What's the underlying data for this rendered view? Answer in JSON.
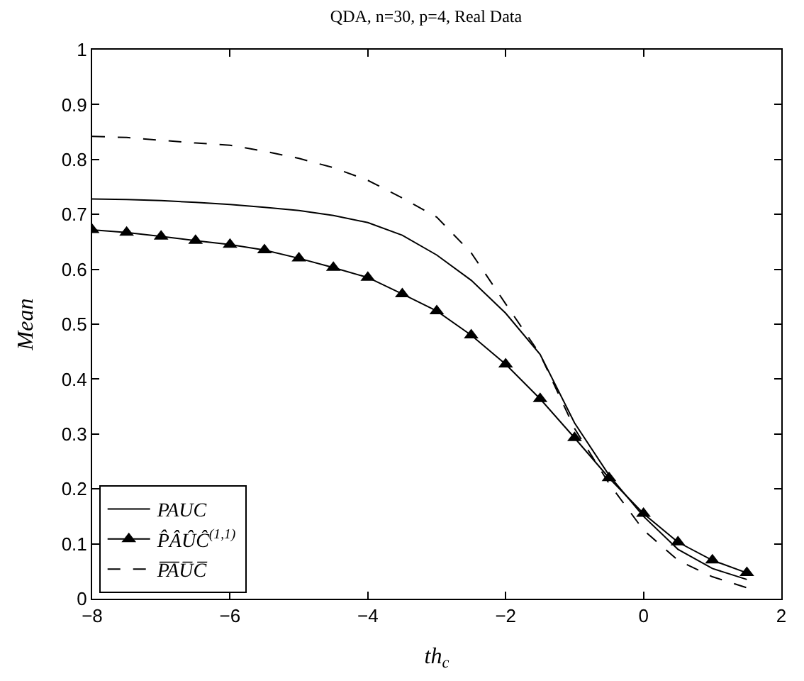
{
  "chart_data": {
    "type": "line",
    "title": "QDA, n=30, p=4, Real Data",
    "xlabel": "th$_{c}$",
    "ylabel": "Mean",
    "x": [
      -8,
      -7.5,
      -7,
      -6.5,
      -6,
      -5.5,
      -5,
      -4.5,
      -4,
      -3.5,
      -3,
      -2.5,
      -2,
      -1.5,
      -1,
      -0.5,
      0,
      0.5,
      1,
      1.5
    ],
    "series": [
      {
        "name": "PAUC",
        "color": "#000000",
        "line_style": "solid",
        "marker": "none",
        "values": [
          0.728,
          0.727,
          0.725,
          0.722,
          0.718,
          0.713,
          0.707,
          0.698,
          0.685,
          0.662,
          0.626,
          0.58,
          0.52,
          0.445,
          0.32,
          0.225,
          0.15,
          0.09,
          0.055,
          0.035
        ]
      },
      {
        "name": "P̂ÂÛĈ$^{(1,1)}$",
        "color": "#000000",
        "line_style": "solid",
        "marker": "triangle",
        "values": [
          0.672,
          0.667,
          0.66,
          0.652,
          0.645,
          0.635,
          0.62,
          0.603,
          0.585,
          0.555,
          0.524,
          0.48,
          0.427,
          0.364,
          0.293,
          0.22,
          0.155,
          0.103,
          0.07,
          0.047
        ]
      },
      {
        "name": "P̅A̅U̅C̅",
        "color": "#000000",
        "line_style": "dashed",
        "marker": "none",
        "values": [
          0.842,
          0.84,
          0.835,
          0.83,
          0.826,
          0.815,
          0.802,
          0.785,
          0.762,
          0.73,
          0.695,
          0.63,
          0.537,
          0.445,
          0.31,
          0.21,
          0.125,
          0.07,
          0.04,
          0.02
        ]
      }
    ],
    "xlim": [
      -8,
      2
    ],
    "xticks": [
      -8,
      -6,
      -4,
      -2,
      0,
      2
    ],
    "ylim": [
      0,
      1
    ],
    "yticks": [
      0,
      0.1,
      0.2,
      0.3,
      0.4,
      0.5,
      0.6,
      0.7,
      0.8,
      0.9,
      1
    ],
    "legend": "bottom left"
  }
}
